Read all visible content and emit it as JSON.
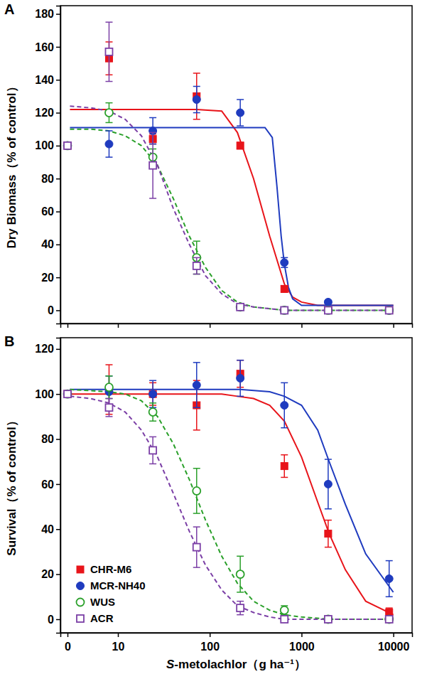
{
  "chart_data": [
    {
      "type": "scatter",
      "title": "A",
      "y_label": "Dry Biomass（% of control）",
      "x": [
        0,
        8,
        24,
        72,
        215,
        650,
        1950,
        9000
      ],
      "xlim": [
        0,
        16000
      ],
      "xticks": [
        0,
        10,
        100,
        1000,
        10000
      ],
      "ylim": [
        -8,
        185
      ],
      "yticks": [
        0,
        20,
        40,
        60,
        80,
        100,
        120,
        140,
        160,
        180
      ],
      "log": "x",
      "grid": false,
      "tick_labels": "y",
      "series": [
        {
          "name": "CHR-M6",
          "color": "#e8141a",
          "marker": "square",
          "line_style": "solid",
          "values": [
            100,
            153,
            104,
            130,
            100,
            13,
            0,
            0
          ],
          "errors": [
            0,
            10,
            3,
            14,
            2,
            2,
            0,
            0
          ],
          "curve": {
            "x": [
              3,
              8,
              24,
              72,
              135,
              200,
              300,
              450,
              650,
              800,
              1000,
              1500,
              2500,
              10000
            ],
            "values": [
              122,
              122,
              122,
              122,
              121,
              108,
              80,
              45,
              16,
              8,
              5,
              3,
              3,
              3
            ]
          }
        },
        {
          "name": "MCR-NH40",
          "color": "#1f3bbf",
          "marker": "circle",
          "line_style": "solid",
          "values": [
            100,
            101,
            109,
            128,
            120,
            29,
            5,
            0
          ],
          "errors": [
            0,
            8,
            8,
            8,
            8,
            3,
            1,
            0
          ],
          "curve": {
            "x": [
              3,
              8,
              24,
              72,
              215,
              400,
              480,
              540,
              600,
              650,
              720,
              800,
              1000,
              1500,
              10000
            ],
            "values": [
              111,
              111,
              111,
              111,
              111,
              111,
              105,
              75,
              45,
              28,
              14,
              7,
              3,
              3,
              3
            ]
          }
        },
        {
          "name": "WUS",
          "color": "#2aa02a",
          "marker": "open-circle",
          "line_style": "dashed",
          "values": [
            100,
            120,
            93,
            32,
            2,
            0,
            0,
            0
          ],
          "errors": [
            0,
            6,
            5,
            10,
            1,
            0,
            0,
            0
          ],
          "curve": {
            "x": [
              3,
              5,
              8,
              12,
              18,
              27,
              40,
              60,
              90,
              135,
              200,
              300,
              450,
              650,
              1000,
              10000
            ],
            "values": [
              110,
              110,
              109,
              106,
              100,
              88,
              68,
              45,
              26,
              12,
              5,
              2,
              1,
              0,
              0,
              0
            ]
          }
        },
        {
          "name": "ACR",
          "color": "#7b3fa6",
          "marker": "open-square",
          "line_style": "dashed",
          "values": [
            100,
            157,
            88,
            27,
            2,
            0,
            0,
            0
          ],
          "errors": [
            0,
            18,
            20,
            5,
            1,
            0,
            0,
            0
          ],
          "curve": {
            "x": [
              3,
              5,
              8,
              12,
              18,
              27,
              40,
              60,
              90,
              135,
              200,
              300,
              450,
              650,
              1000,
              10000
            ],
            "values": [
              124,
              123,
              121,
              116,
              106,
              88,
              62,
              40,
              21,
              10,
              4,
              2,
              1,
              0,
              0,
              0
            ]
          }
        }
      ]
    },
    {
      "type": "scatter",
      "title": "B",
      "y_label": "Survival（% of control）",
      "x_label": "S-metolachlor（g ha⁻¹）",
      "x": [
        0,
        8,
        24,
        72,
        215,
        650,
        1950,
        9000
      ],
      "xlim": [
        0,
        16000
      ],
      "xticks": [
        0,
        10,
        100,
        1000,
        10000
      ],
      "ylim": [
        -6,
        125
      ],
      "yticks": [
        0,
        20,
        40,
        60,
        80,
        100,
        120
      ],
      "log": "x",
      "grid": false,
      "legend": "lower left",
      "series": [
        {
          "name": "CHR-M6",
          "color": "#e8141a",
          "marker": "square",
          "line_style": "solid",
          "values": [
            100,
            102,
            100,
            95,
            109,
            68,
            38,
            3
          ],
          "errors": [
            0,
            11,
            5,
            11,
            6,
            5,
            6,
            2
          ],
          "curve": {
            "x": [
              3,
              24,
              135,
              200,
              300,
              450,
              650,
              1000,
              1500,
              2000,
              3000,
              5000,
              10000
            ],
            "values": [
              100,
              100,
              100,
              99,
              98,
              95,
              88,
              72,
              52,
              38,
              22,
              8,
              2
            ]
          }
        },
        {
          "name": "MCR-NH40",
          "color": "#1f3bbf",
          "marker": "circle",
          "line_style": "solid",
          "values": [
            100,
            101,
            100,
            104,
            107,
            95,
            60,
            18
          ],
          "errors": [
            0,
            7,
            6,
            10,
            8,
            10,
            11,
            8
          ],
          "curve": {
            "x": [
              3,
              24,
              215,
              450,
              650,
              1000,
              1500,
              2000,
              3000,
              5000,
              10000
            ],
            "values": [
              102,
              102,
              102,
              101,
              99,
              95,
              84,
              70,
              51,
              29,
              12
            ]
          }
        },
        {
          "name": "WUS",
          "color": "#2aa02a",
          "marker": "open-circle",
          "line_style": "dashed",
          "values": [
            100,
            103,
            92,
            57,
            20,
            4,
            0,
            0
          ],
          "errors": [
            0,
            5,
            4,
            10,
            8,
            2,
            0,
            0
          ],
          "curve": {
            "x": [
              3,
              8,
              12,
              18,
              27,
              40,
              60,
              90,
              135,
              200,
              300,
              450,
              650,
              1000,
              2000,
              10000
            ],
            "values": [
              102,
              101,
              100,
              97,
              90,
              78,
              62,
              44,
              28,
              16,
              8,
              4,
              2,
              1,
              0,
              0
            ]
          }
        },
        {
          "name": "ACR",
          "color": "#7b3fa6",
          "marker": "open-square",
          "line_style": "dashed",
          "values": [
            100,
            94,
            75,
            32,
            5,
            0,
            0,
            0
          ],
          "errors": [
            0,
            4,
            6,
            9,
            3,
            0,
            0,
            0
          ],
          "curve": {
            "x": [
              3,
              5,
              8,
              12,
              18,
              27,
              40,
              60,
              90,
              135,
              200,
              300,
              450,
              650,
              10000
            ],
            "values": [
              99,
              98,
              96,
              92,
              84,
              72,
              56,
              39,
              24,
              13,
              6,
              3,
              1,
              0,
              0
            ]
          }
        }
      ]
    }
  ]
}
